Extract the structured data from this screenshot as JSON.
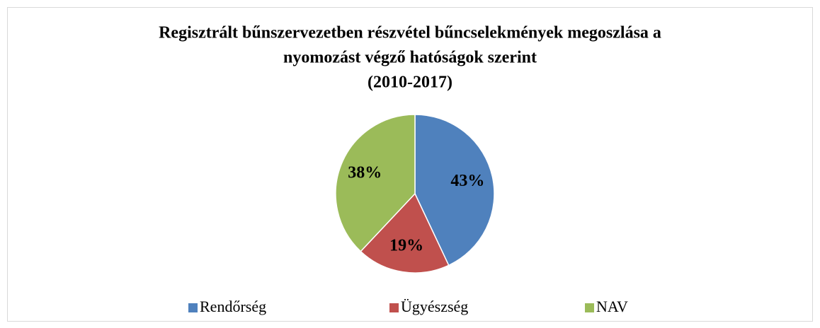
{
  "chart_data": {
    "type": "pie",
    "title": [
      "Regisztrált bűnszervezetben részvétel bűncselekmények megoszlása a",
      "nyomozást végző hatóságok szerint",
      "(2010-2017)"
    ],
    "categories": [
      "Rendőrség",
      "Ügyészség",
      "NAV"
    ],
    "values": [
      43,
      19,
      38
    ],
    "value_labels": [
      "43%",
      "19%",
      "38%"
    ],
    "colors": [
      "#4f81bd",
      "#c0504d",
      "#9bbb59"
    ],
    "legend": "bottom"
  }
}
